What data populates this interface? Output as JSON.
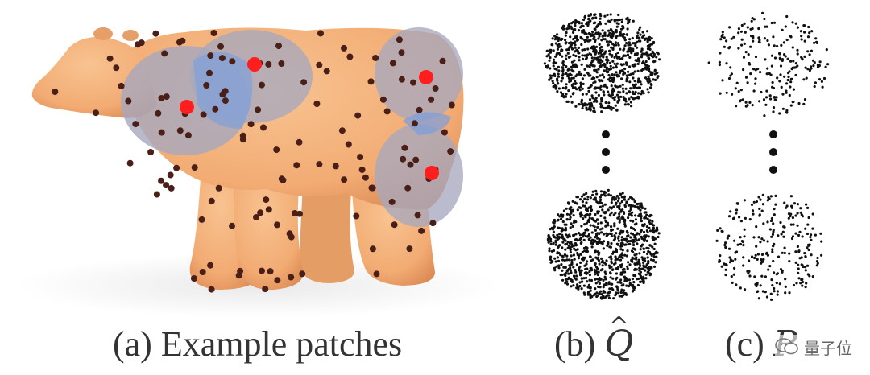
{
  "captions": {
    "a": {
      "label": "(a)",
      "text": "Example patches"
    },
    "b": {
      "label": "(b)",
      "symbol": "Q"
    },
    "c": {
      "label": "(c)",
      "symbol": "P"
    }
  },
  "watermark": {
    "text": "量子位"
  },
  "colors": {
    "bear": "#f4b27d",
    "bear_shade": "#df8f58",
    "seed_point": "#4a1f18",
    "patch_gray": "#a6a8be",
    "patch_blue": "#7f9fd8",
    "patch_center": "#ff1e1e",
    "cloud_point": "#111111"
  }
}
